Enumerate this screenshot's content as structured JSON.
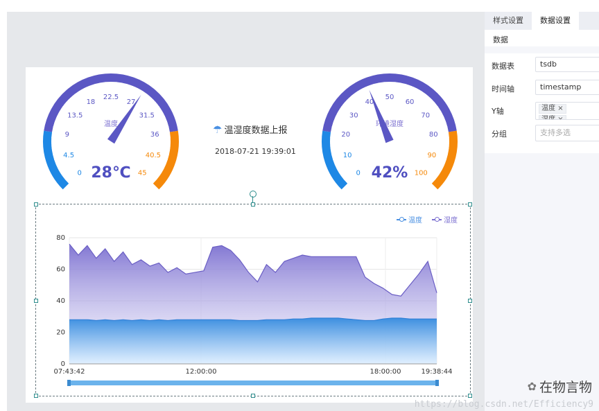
{
  "header": {
    "title": "温湿度数据上报",
    "timestamp": "2018-07-21 19:39:01"
  },
  "gauge_temp": {
    "label": "温度",
    "ticks": [
      "0",
      "4.5",
      "9",
      "13.5",
      "18",
      "22.5",
      "27",
      "31.5",
      "36",
      "40.5",
      "45"
    ],
    "value": 28,
    "max": 45,
    "display": "28",
    "unit": "℃"
  },
  "gauge_hum": {
    "label": "环境湿度",
    "ticks": [
      "0",
      "10",
      "20",
      "30",
      "40",
      "50",
      "60",
      "70",
      "80",
      "90",
      "100"
    ],
    "value": 42,
    "max": 100,
    "display": "42%"
  },
  "legend": {
    "temp": "温度",
    "hum": "湿度"
  },
  "colors": {
    "temp": "#4a90e2",
    "hum": "#7b6fd0",
    "ring_blue": "#1e88e5",
    "ring_purple": "#5b57c4",
    "ring_orange": "#f5890a"
  },
  "chart_data": {
    "type": "area",
    "x_labels": [
      "07:43:42",
      "12:00:00",
      "18:00:00",
      "19:38:44"
    ],
    "ylim": [
      0,
      80
    ],
    "yticks": [
      0,
      20,
      40,
      60,
      80
    ],
    "series": [
      {
        "name": "湿度",
        "values": [
          76,
          69,
          75,
          67,
          73,
          65,
          71,
          63,
          66,
          62,
          64,
          58,
          61,
          57,
          58,
          59,
          74,
          75,
          72,
          66,
          58,
          52,
          63,
          58,
          65,
          67,
          69,
          68,
          68,
          68,
          68,
          68,
          68,
          55,
          51,
          48,
          44,
          43,
          50,
          57,
          65,
          45
        ]
      },
      {
        "name": "温度",
        "values": [
          28,
          28,
          28,
          27.5,
          28,
          27.5,
          28,
          27.5,
          28,
          27.5,
          28,
          27.5,
          28,
          28,
          28,
          28,
          28,
          28,
          28,
          27.5,
          27.5,
          27.5,
          28,
          28,
          28,
          28.5,
          28.5,
          29,
          29,
          29,
          29,
          28.5,
          28,
          27.5,
          27.5,
          28.5,
          29,
          29,
          28.5,
          28.5,
          28.5,
          28.5
        ]
      }
    ]
  },
  "panel": {
    "tabs": [
      "样式设置",
      "数据设置"
    ],
    "section": "数据",
    "fields": [
      {
        "label": "数据表",
        "value": "tsdb"
      },
      {
        "label": "时间轴",
        "value": "timestamp"
      },
      {
        "label": "Y轴",
        "tags": [
          "温度",
          "湿度"
        ]
      },
      {
        "label": "分组",
        "placeholder": "支持多选"
      }
    ]
  },
  "watermark": "https://blog.csdn.net/Efficiency9",
  "brand": "在物言物"
}
